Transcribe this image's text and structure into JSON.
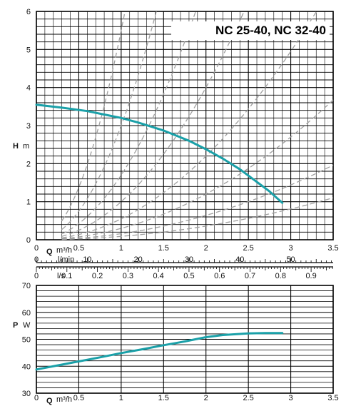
{
  "chart_data": [
    {
      "type": "line",
      "title": "NC 25-40,  NC 32-40",
      "ylabel_letter": "H",
      "ylabel_unit": "m",
      "x_unit_letter": "Q",
      "x_unit": "m³/h",
      "x_unit_lmin": "l/min",
      "x_unit_ls": "l/s",
      "xlim": [
        0,
        3.5
      ],
      "ylim": [
        0,
        6
      ],
      "x_ticks": [
        0,
        0.5,
        1,
        1.5,
        2,
        2.5,
        3,
        3.5
      ],
      "x_tick_labels": [
        "0",
        "0.5",
        "1",
        "1.5",
        "2",
        "2.5",
        "3",
        "3.5"
      ],
      "y_ticks": [
        0,
        1,
        2,
        3,
        4,
        5,
        6
      ],
      "y_tick_labels": [
        "0",
        "1",
        "2",
        "3",
        "4",
        "5",
        "6"
      ],
      "lmin_ticks": [
        0,
        10,
        20,
        30,
        40,
        50
      ],
      "lmin_tick_labels": [
        "0",
        "10",
        "20",
        "30",
        "40",
        "50"
      ],
      "ls_ticks": [
        0,
        0.1,
        0.2,
        0.3,
        0.4,
        0.5,
        0.6,
        0.7,
        0.8,
        0.9
      ],
      "ls_tick_labels": [
        "0",
        "0.1",
        "0.2",
        "0.3",
        "0.4",
        "0.5",
        "0.6",
        "0.7",
        "0.8",
        "0.9"
      ],
      "grid": true,
      "curve_color": "#1aa0a8",
      "series": [
        {
          "x": [
            0,
            0.3,
            0.6,
            0.8,
            1.0,
            1.2,
            1.5,
            1.8,
            2.0,
            2.2,
            2.4,
            2.6,
            2.75,
            2.9
          ],
          "y": [
            3.55,
            3.47,
            3.38,
            3.29,
            3.2,
            3.08,
            2.87,
            2.6,
            2.38,
            2.13,
            1.85,
            1.52,
            1.27,
            0.97
          ]
        }
      ],
      "system_curve_color": "#a0a0a0",
      "system_curves_dashed": true
    },
    {
      "type": "line",
      "ylabel_letter": "P",
      "ylabel_unit": "W",
      "x_unit_letter": "Q",
      "x_unit": "m³/h",
      "xlim": [
        0,
        3.5
      ],
      "ylim": [
        30,
        70
      ],
      "x_ticks": [
        0,
        0.5,
        1,
        1.5,
        2,
        2.5,
        3,
        3.5
      ],
      "x_tick_labels": [
        "0",
        "0.5",
        "1",
        "1.5",
        "2",
        "2.5",
        "3",
        "3.5"
      ],
      "y_ticks": [
        30,
        40,
        50,
        60,
        70
      ],
      "y_tick_labels": [
        "30",
        "40",
        "50",
        "60",
        "70"
      ],
      "grid": true,
      "curve_color": "#1aa0a8",
      "series": [
        {
          "x": [
            0,
            0.25,
            0.5,
            0.75,
            1.0,
            1.25,
            1.5,
            1.75,
            2.0,
            2.2,
            2.5,
            2.7,
            2.9
          ],
          "y": [
            38.8,
            40.3,
            41.8,
            43.3,
            44.9,
            46.3,
            47.8,
            49.2,
            50.8,
            51.6,
            52.2,
            52.3,
            52.3
          ]
        }
      ]
    }
  ]
}
